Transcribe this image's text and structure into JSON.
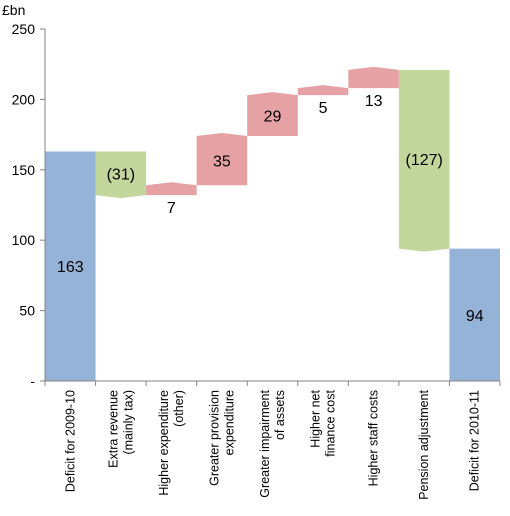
{
  "chart_data": {
    "type": "waterfall",
    "unit_label": "£bn",
    "ylim": [
      0,
      250
    ],
    "yticks": [
      {
        "value": 0,
        "label": "-"
      },
      {
        "value": 50,
        "label": "50"
      },
      {
        "value": 100,
        "label": "100"
      },
      {
        "value": 150,
        "label": "150"
      },
      {
        "value": 200,
        "label": "200"
      },
      {
        "value": 250,
        "label": "250"
      }
    ],
    "grid": false,
    "colors": {
      "total": "#95b3d7",
      "decrease": "#c3d69b",
      "increase": "#e6a1a4"
    },
    "steps": [
      {
        "label": [
          "Deficit for 2009-10"
        ],
        "kind": "total",
        "start": 0,
        "end": 163,
        "value_label": "163"
      },
      {
        "label": [
          "Extra revenue",
          "(mainly tax)"
        ],
        "kind": "decrease",
        "start": 163,
        "end": 132,
        "value_label": "(31)"
      },
      {
        "label": [
          "Higher expenditure",
          "(other)"
        ],
        "kind": "increase",
        "start": 132,
        "end": 139,
        "value_label": "7"
      },
      {
        "label": [
          "Greater provision",
          "expenditure"
        ],
        "kind": "increase",
        "start": 139,
        "end": 174,
        "value_label": "35"
      },
      {
        "label": [
          "Greater impairment",
          "of assets"
        ],
        "kind": "increase",
        "start": 174,
        "end": 203,
        "value_label": "29"
      },
      {
        "label": [
          "Higher net",
          "finance cost"
        ],
        "kind": "increase",
        "start": 203,
        "end": 208,
        "value_label": "5"
      },
      {
        "label": [
          "Higher staff costs"
        ],
        "kind": "increase",
        "start": 208,
        "end": 221,
        "value_label": "13"
      },
      {
        "label": [
          "Pension adjustment"
        ],
        "kind": "decrease",
        "start": 221,
        "end": 94,
        "value_label": "(127)"
      },
      {
        "label": [
          "Deficit for 2010-11"
        ],
        "kind": "total",
        "start": 0,
        "end": 94,
        "value_label": "94"
      }
    ]
  }
}
